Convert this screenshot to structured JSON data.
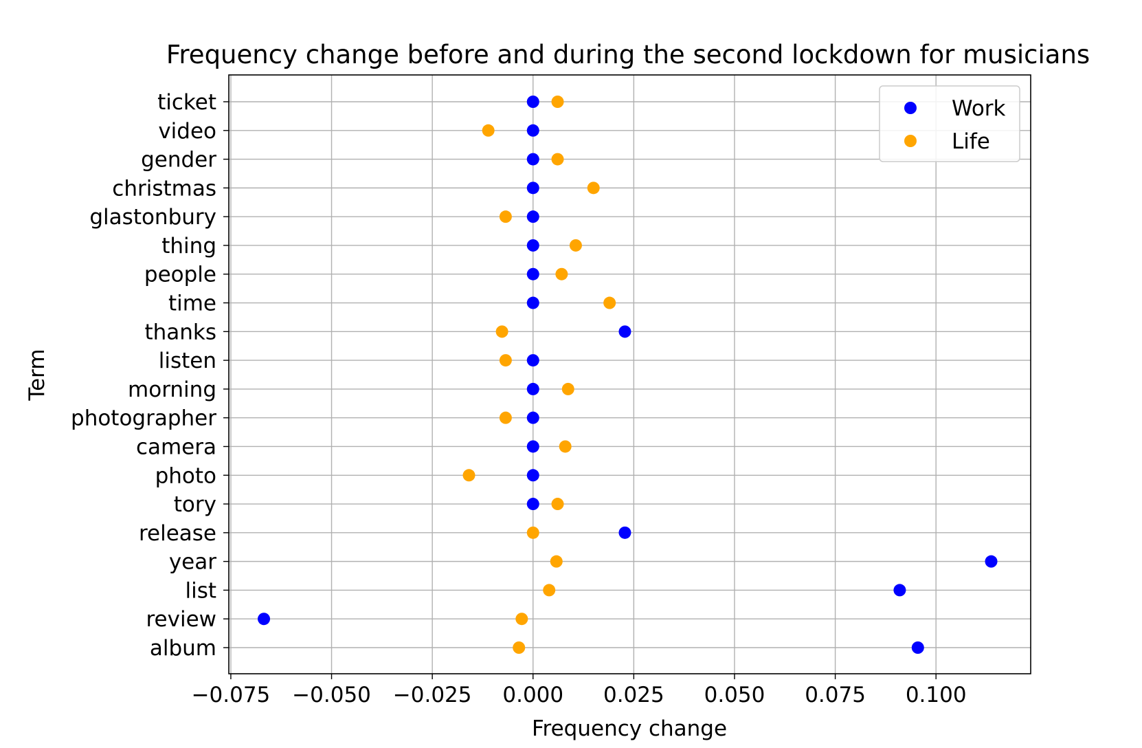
{
  "chart_data": {
    "type": "scatter",
    "title": "Frequency change before and during the second lockdown for musicians",
    "xlabel": "Frequency change",
    "ylabel": "Term",
    "xlim": [
      -0.0755,
      0.1235
    ],
    "x_ticks": [
      -0.075,
      -0.05,
      -0.025,
      0.0,
      0.025,
      0.05,
      0.075,
      0.1
    ],
    "x_tick_labels": [
      "−0.075",
      "−0.050",
      "−0.025",
      "0.000",
      "0.025",
      "0.050",
      "0.075",
      "0.100"
    ],
    "categories": [
      "album",
      "review",
      "list",
      "year",
      "release",
      "tory",
      "photo",
      "camera",
      "photographer",
      "morning",
      "listen",
      "thanks",
      "time",
      "people",
      "thing",
      "glastonbury",
      "christmas",
      "gender",
      "video",
      "ticket"
    ],
    "grid": true,
    "legend_position": "top-right",
    "series": [
      {
        "name": "Work",
        "color": "#0000ff",
        "values": [
          0.0955,
          -0.0668,
          0.091,
          0.1137,
          0.0228,
          0.0,
          0.0,
          0.0,
          0.0,
          0.0,
          0.0,
          0.0228,
          0.0,
          0.0,
          0.0,
          0.0,
          0.0,
          0.0,
          0.0,
          0.0
        ]
      },
      {
        "name": "Life",
        "color": "#ffa500",
        "values": [
          -0.0035,
          -0.0028,
          0.004,
          0.0058,
          0.0,
          0.0061,
          -0.0159,
          0.008,
          -0.0068,
          0.0087,
          -0.0068,
          -0.0077,
          0.019,
          0.0071,
          0.0106,
          -0.0068,
          0.015,
          0.0061,
          -0.0111,
          0.0061
        ]
      }
    ]
  }
}
